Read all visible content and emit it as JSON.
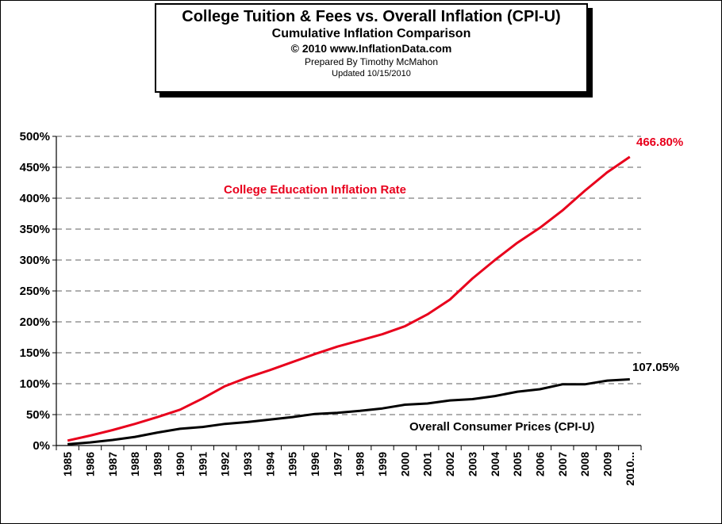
{
  "title": {
    "line1": "College  Tuition & Fees vs. Overall  Inflation (CPI-U)",
    "line2": "Cumulative Inflation Comparison",
    "line3": "© 2010 www.InflationData.com",
    "line4": "Prepared  By Timothy McMahon",
    "line5": "Updated 10/15/2010"
  },
  "chart_data": {
    "type": "line",
    "x": [
      "1985",
      "1986",
      "1987",
      "1988",
      "1989",
      "1990",
      "1991",
      "1992",
      "1993",
      "1994",
      "1995",
      "1996",
      "1997",
      "1998",
      "1999",
      "2000",
      "2001",
      "2002",
      "2003",
      "2004",
      "2005",
      "2006",
      "2007",
      "2008",
      "2009",
      "2010..."
    ],
    "ylim": [
      0,
      500
    ],
    "yticks": [
      "0%",
      "50%",
      "100%",
      "150%",
      "200%",
      "250%",
      "300%",
      "350%",
      "400%",
      "450%",
      "500%"
    ],
    "grid": true,
    "series": [
      {
        "name": "College Education Inflation Rate",
        "color": "#e8001c",
        "values": [
          8,
          16,
          25,
          35,
          46,
          58,
          76,
          96,
          110,
          122,
          135,
          148,
          160,
          170,
          180,
          193,
          212,
          236,
          270,
          300,
          328,
          352,
          380,
          412,
          442,
          466.8
        ],
        "end_label": "466.80%"
      },
      {
        "name": "Overall Consumer Prices (CPI-U)",
        "color": "#000000",
        "values": [
          2,
          5,
          9,
          14,
          21,
          27,
          30,
          35,
          38,
          42,
          46,
          51,
          53,
          56,
          60,
          66,
          68,
          73,
          75,
          80,
          87,
          91,
          99,
          99,
          105,
          107.05
        ],
        "end_label": "107.05%"
      }
    ]
  }
}
